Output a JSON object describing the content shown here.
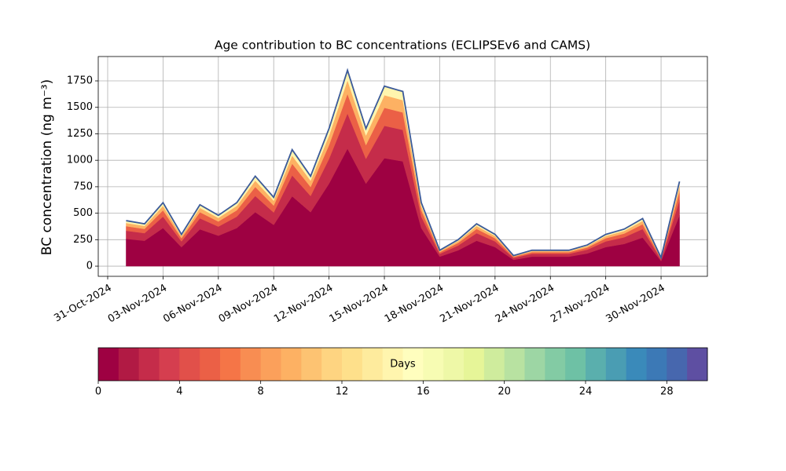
{
  "chart_data": {
    "type": "stacked_area",
    "title": "Age contribution to BC concentrations (ECLIPSEv6 and CAMS)",
    "y_label": "BC concentration (ng m⁻³)",
    "x": [
      "01-Nov-2024",
      "02-Nov-2024",
      "03-Nov-2024",
      "04-Nov-2024",
      "05-Nov-2024",
      "06-Nov-2024",
      "07-Nov-2024",
      "08-Nov-2024",
      "09-Nov-2024",
      "10-Nov-2024",
      "11-Nov-2024",
      "12-Nov-2024",
      "13-Nov-2024",
      "14-Nov-2024",
      "15-Nov-2024",
      "16-Nov-2024",
      "17-Nov-2024",
      "18-Nov-2024",
      "19-Nov-2024",
      "20-Nov-2024",
      "21-Nov-2024",
      "22-Nov-2024",
      "23-Nov-2024",
      "24-Nov-2024",
      "25-Nov-2024",
      "26-Nov-2024",
      "27-Nov-2024",
      "28-Nov-2024",
      "29-Nov-2024",
      "30-Nov-2024",
      "01-Dec-2024"
    ],
    "series": [
      {
        "color": "#9e0142",
        "values": [
          258,
          240,
          360,
          180,
          348,
          288,
          360,
          510,
          390,
          660,
          510,
          780,
          1110,
          780,
          1020,
          990,
          360,
          90,
          150,
          240,
          180,
          60,
          90,
          90,
          90,
          120,
          180,
          210,
          270,
          48,
          480
        ]
      },
      {
        "color": "#c52c4a",
        "values": [
          77,
          72,
          108,
          54,
          104,
          86,
          108,
          153,
          117,
          198,
          153,
          234,
          333,
          234,
          306,
          297,
          108,
          27,
          45,
          72,
          54,
          18,
          27,
          27,
          27,
          36,
          54,
          63,
          81,
          14,
          144
        ]
      },
      {
        "color": "#eb6046",
        "values": [
          43,
          40,
          60,
          30,
          58,
          48,
          60,
          85,
          65,
          110,
          85,
          130,
          185,
          130,
          170,
          165,
          60,
          15,
          25,
          40,
          30,
          10,
          15,
          15,
          15,
          20,
          30,
          35,
          45,
          8,
          80
        ]
      },
      {
        "color": "#fdb163",
        "values": [
          30,
          28,
          42,
          21,
          41,
          34,
          42,
          60,
          46,
          77,
          60,
          91,
          130,
          91,
          119,
          116,
          42,
          11,
          18,
          28,
          21,
          7,
          11,
          11,
          11,
          14,
          21,
          25,
          32,
          6,
          56
        ]
      },
      {
        "color": "#fff5ae",
        "values": [
          22,
          20,
          30,
          15,
          29,
          24,
          30,
          42,
          32,
          55,
          42,
          65,
          92,
          65,
          85,
          82,
          30,
          7,
          12,
          20,
          15,
          5,
          7,
          7,
          7,
          10,
          15,
          17,
          22,
          4,
          40
        ]
      }
    ],
    "outline_color": "#3b5a9a",
    "xlim": [
      "31-Oct-2024",
      "02-Dec-2024"
    ],
    "xticks": [
      "31-Oct-2024",
      "03-Nov-2024",
      "06-Nov-2024",
      "09-Nov-2024",
      "12-Nov-2024",
      "15-Nov-2024",
      "18-Nov-2024",
      "21-Nov-2024",
      "24-Nov-2024",
      "27-Nov-2024",
      "30-Nov-2024"
    ],
    "ylim": [
      -96,
      1980
    ],
    "yticks": [
      0,
      250,
      500,
      750,
      1000,
      1250,
      1500,
      1750
    ],
    "grid": true,
    "colorbar": {
      "label": "Days",
      "lim": [
        0,
        30
      ],
      "ticks": [
        0,
        4,
        8,
        12,
        16,
        20,
        24,
        28
      ],
      "colors": [
        "#9e0142",
        "#b11a44",
        "#c52c4a",
        "#d53e4f",
        "#e1504a",
        "#eb6046",
        "#f57547",
        "#f88d52",
        "#fba05b",
        "#fdb163",
        "#fdc372",
        "#fed481",
        "#fee08b",
        "#feeb9d",
        "#fff5ae",
        "#fffebe",
        "#f7fcb3",
        "#eef8a7",
        "#e6f598",
        "#cfec9d",
        "#b8e2a1",
        "#9dd6a4",
        "#83cba4",
        "#6ec1a5",
        "#5aafad",
        "#4a9db3",
        "#3a8aba",
        "#3c79b6",
        "#4767ae",
        "#5e4fa2"
      ]
    }
  }
}
